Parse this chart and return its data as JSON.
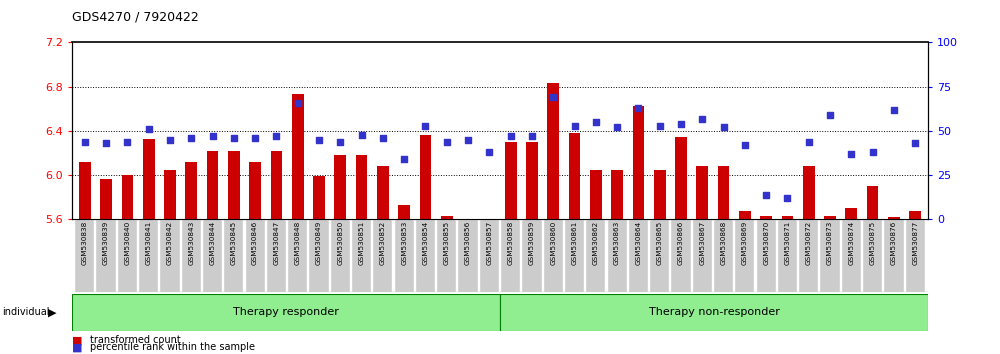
{
  "title": "GDS4270 / 7920422",
  "samples": [
    "GSM530838",
    "GSM530839",
    "GSM530840",
    "GSM530841",
    "GSM530842",
    "GSM530843",
    "GSM530844",
    "GSM530845",
    "GSM530846",
    "GSM530847",
    "GSM530848",
    "GSM530849",
    "GSM530850",
    "GSM530851",
    "GSM530852",
    "GSM530853",
    "GSM530854",
    "GSM530855",
    "GSM530856",
    "GSM530857",
    "GSM530858",
    "GSM530859",
    "GSM530860",
    "GSM530861",
    "GSM530862",
    "GSM530863",
    "GSM530864",
    "GSM530865",
    "GSM530866",
    "GSM530867",
    "GSM530868",
    "GSM530869",
    "GSM530870",
    "GSM530871",
    "GSM530872",
    "GSM530873",
    "GSM530874",
    "GSM530875",
    "GSM530876",
    "GSM530877"
  ],
  "bar_values": [
    6.12,
    5.97,
    6.0,
    6.33,
    6.05,
    6.12,
    6.22,
    6.22,
    6.12,
    6.22,
    6.73,
    5.99,
    6.18,
    6.18,
    6.08,
    5.73,
    6.36,
    5.63,
    5.6,
    5.57,
    6.3,
    6.3,
    6.83,
    6.38,
    6.05,
    6.05,
    6.63,
    6.05,
    6.35,
    6.08,
    6.08,
    5.68,
    5.63,
    5.63,
    6.08,
    5.63,
    5.7,
    5.9,
    5.62,
    5.68
  ],
  "percentile_values": [
    44,
    43,
    44,
    51,
    45,
    46,
    47,
    46,
    46,
    47,
    66,
    45,
    44,
    48,
    46,
    34,
    53,
    44,
    45,
    38,
    47,
    47,
    69,
    53,
    55,
    52,
    63,
    53,
    54,
    57,
    52,
    42,
    14,
    12,
    44,
    59,
    37,
    38,
    62,
    43
  ],
  "group1_label": "Therapy responder",
  "group2_label": "Therapy non-responder",
  "group1_count": 20,
  "group2_count": 20,
  "ylim_left": [
    5.6,
    7.2
  ],
  "ylim_right": [
    0,
    100
  ],
  "yticks_left": [
    5.6,
    6.0,
    6.4,
    6.8,
    7.2
  ],
  "yticks_right": [
    0,
    25,
    50,
    75,
    100
  ],
  "bar_color": "#cc0000",
  "dot_color": "#3333cc",
  "tick_label_bg": "#cccccc",
  "group_bg": "#90ee90",
  "group_border": "#008000"
}
